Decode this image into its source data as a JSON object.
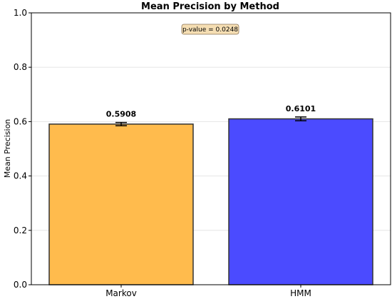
{
  "chart_data": {
    "type": "bar",
    "title": "Mean Precision by Method",
    "xlabel": "",
    "ylabel": "Mean Precision",
    "categories": [
      "Markov",
      "HMM"
    ],
    "values": [
      0.5908,
      0.6101
    ],
    "value_labels": [
      "0.5908",
      "0.6101"
    ],
    "error": [
      0.006,
      0.007
    ],
    "colors": [
      "#FFBB4D",
      "#4B4BFF"
    ],
    "edge_color": "#333333",
    "ylim": [
      0,
      1.0
    ],
    "yticks": [
      0.0,
      0.2,
      0.4,
      0.6,
      0.8,
      1.0
    ],
    "ytick_labels": [
      "0.0",
      "0.2",
      "0.4",
      "0.6",
      "0.8",
      "1.0"
    ],
    "grid": true,
    "annotation": "p-value = 0.0248"
  }
}
